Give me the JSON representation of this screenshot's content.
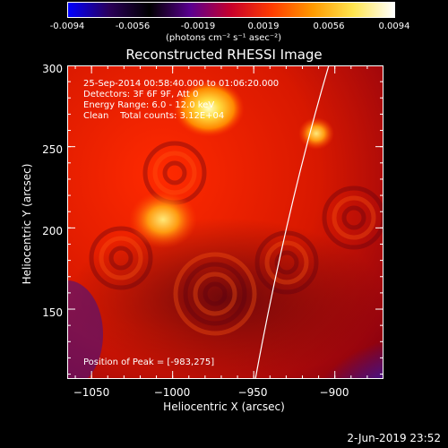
{
  "colorbar": {
    "colors": [
      "#0000ff",
      "#2a005a",
      "#000000",
      "#5a0090",
      "#c8002a",
      "#ff3c00",
      "#ff9a00",
      "#ffe650",
      "#ffffff"
    ],
    "ticks": [
      "-0.0094",
      "-0.0056",
      "-0.0019",
      "0.0019",
      "0.0056",
      "0.0094"
    ],
    "units": "(photons cm⁻² s⁻¹ asec⁻²)"
  },
  "title": "Reconstructed RHESSI Image",
  "overlay": {
    "time_range": "25-Sep-2014 00:58:40.000 to 01:06:20.000",
    "detectors": "Detectors: 3F 6F 9F, Att 0",
    "energy": "Energy Range: 6.0 - 12.0 keV",
    "clean": "Clean    Total counts: 3.12E+04",
    "peak": "Position of Peak = [-983,275]"
  },
  "axes": {
    "xlabel": "Heliocentric X (arcsec)",
    "ylabel": "Heliocentric Y (arcsec)",
    "xlim": [
      -1065,
      -870
    ],
    "ylim": [
      107,
      300
    ],
    "xticks": [
      {
        "value": -1050,
        "label": "−1050"
      },
      {
        "value": -1000,
        "label": "−1000"
      },
      {
        "value": -950,
        "label": "−950"
      },
      {
        "value": -900,
        "label": "−900"
      }
    ],
    "yticks": [
      {
        "value": 150,
        "label": "150"
      },
      {
        "value": 200,
        "label": "200"
      },
      {
        "value": 250,
        "label": "250"
      },
      {
        "value": 300,
        "label": "300"
      }
    ]
  },
  "footer": "2-Jun-2019 23:52"
}
